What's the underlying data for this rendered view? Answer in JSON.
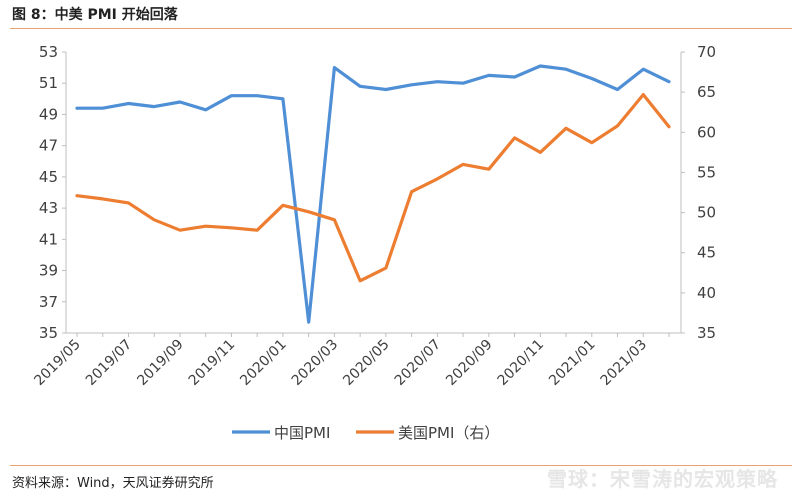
{
  "figure": {
    "title": "图 8：中美 PMI 开始回落",
    "source": "资料来源：Wind，天风证券研究所",
    "watermark": "雪球：宋雪涛的宏观策略"
  },
  "chart_data": {
    "type": "line",
    "x": [
      "2019/05",
      "2019/06",
      "2019/07",
      "2019/08",
      "2019/09",
      "2019/10",
      "2019/11",
      "2019/12",
      "2020/01",
      "2020/02",
      "2020/03",
      "2020/04",
      "2020/05",
      "2020/06",
      "2020/07",
      "2020/08",
      "2020/09",
      "2020/10",
      "2020/11",
      "2020/12",
      "2021/01",
      "2021/02",
      "2021/03",
      "2021/04"
    ],
    "xtick_labels": [
      "2019/05",
      "2019/07",
      "2019/09",
      "2019/11",
      "2020/01",
      "2020/03",
      "2020/05",
      "2020/07",
      "2020/09",
      "2020/11",
      "2021/01",
      "2021/03"
    ],
    "series": [
      {
        "name": "中国PMI",
        "axis": "left",
        "color": "#4f8fd6",
        "values": [
          49.4,
          49.4,
          49.7,
          49.5,
          49.8,
          49.3,
          50.2,
          50.2,
          50.0,
          35.7,
          52.0,
          50.8,
          50.6,
          50.9,
          51.1,
          51.0,
          51.5,
          51.4,
          52.1,
          51.9,
          51.3,
          50.6,
          51.9,
          51.1
        ]
      },
      {
        "name": "美国PMI（右）",
        "axis": "right",
        "color": "#ed7d31",
        "values": [
          52.1,
          51.7,
          51.2,
          49.1,
          47.8,
          48.3,
          48.1,
          47.8,
          50.9,
          50.1,
          49.1,
          41.5,
          43.1,
          52.6,
          54.2,
          56.0,
          55.4,
          59.3,
          57.5,
          60.5,
          58.7,
          60.8,
          64.7,
          60.7
        ]
      }
    ],
    "ylim_left": [
      35,
      53
    ],
    "yticks_left": [
      "53",
      "51",
      "49",
      "47",
      "45",
      "43",
      "41",
      "39",
      "37",
      "35"
    ],
    "ylim_right": [
      35,
      70
    ],
    "yticks_right": [
      "70",
      "65",
      "60",
      "55",
      "50",
      "45",
      "40",
      "35"
    ],
    "grid": false,
    "legend_position": "bottom-center"
  }
}
